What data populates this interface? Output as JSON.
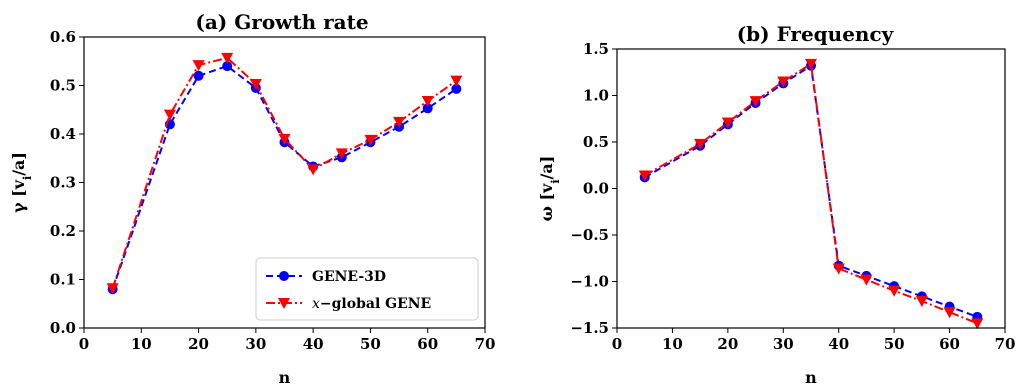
{
  "chart_data": [
    {
      "type": "line",
      "title": "(a) Growth rate",
      "xlabel": "n",
      "ylabel": "γ [v_i/a]",
      "xlim": [
        0,
        70
      ],
      "ylim": [
        0,
        0.6
      ],
      "xticks": [
        0,
        10,
        20,
        30,
        40,
        50,
        60,
        70
      ],
      "yticks": [
        0.0,
        0.1,
        0.2,
        0.3,
        0.4,
        0.5,
        0.6
      ],
      "xtick_labels": [
        "0",
        "10",
        "20",
        "30",
        "40",
        "50",
        "60",
        "70"
      ],
      "ytick_labels": [
        "0.0",
        "0.1",
        "0.2",
        "0.3",
        "0.4",
        "0.5",
        "0.6"
      ],
      "grid": false,
      "legend": "bottom-right",
      "x": [
        5,
        15,
        20,
        25,
        30,
        35,
        40,
        45,
        50,
        55,
        60,
        65
      ],
      "series": [
        {
          "name": "GENE-3D",
          "color": "#0000ff",
          "marker": "circle",
          "linestyle": "dashed",
          "values": [
            0.08,
            0.42,
            0.52,
            0.54,
            0.495,
            0.383,
            0.333,
            0.352,
            0.383,
            0.415,
            0.453,
            0.493
          ]
        },
        {
          "name": "x−global GENE",
          "color": "#ff0000",
          "marker": "triangle-down",
          "linestyle": "dashdot",
          "values": [
            0.082,
            0.44,
            0.542,
            0.557,
            0.503,
            0.39,
            0.327,
            0.36,
            0.388,
            0.425,
            0.468,
            0.51
          ]
        }
      ]
    },
    {
      "type": "line",
      "title": "(b) Frequency",
      "xlabel": "n",
      "ylabel": "ω [v_i/a]",
      "xlim": [
        0,
        70
      ],
      "ylim": [
        -1.5,
        1.5
      ],
      "xticks": [
        0,
        10,
        20,
        30,
        40,
        50,
        60,
        70
      ],
      "yticks": [
        -1.5,
        -1.0,
        -0.5,
        0.0,
        0.5,
        1.0,
        1.5
      ],
      "xtick_labels": [
        "0",
        "10",
        "20",
        "30",
        "40",
        "50",
        "60",
        "70"
      ],
      "ytick_labels": [
        "−1.5",
        "−1.0",
        "−0.5",
        "0.0",
        "0.5",
        "1.0",
        "1.5"
      ],
      "grid": false,
      "x": [
        5,
        15,
        20,
        25,
        30,
        35,
        40,
        45,
        50,
        55,
        60,
        65
      ],
      "series": [
        {
          "name": "GENE-3D",
          "color": "#0000ff",
          "marker": "circle",
          "linestyle": "dashed",
          "values": [
            0.12,
            0.46,
            0.69,
            0.92,
            1.13,
            1.32,
            -0.83,
            -0.94,
            -1.05,
            -1.16,
            -1.27,
            -1.38
          ]
        },
        {
          "name": "x−global GENE",
          "color": "#ff0000",
          "marker": "triangle-down",
          "linestyle": "dashdot",
          "values": [
            0.14,
            0.48,
            0.71,
            0.94,
            1.15,
            1.34,
            -0.86,
            -0.98,
            -1.1,
            -1.21,
            -1.33,
            -1.45
          ]
        }
      ]
    }
  ]
}
